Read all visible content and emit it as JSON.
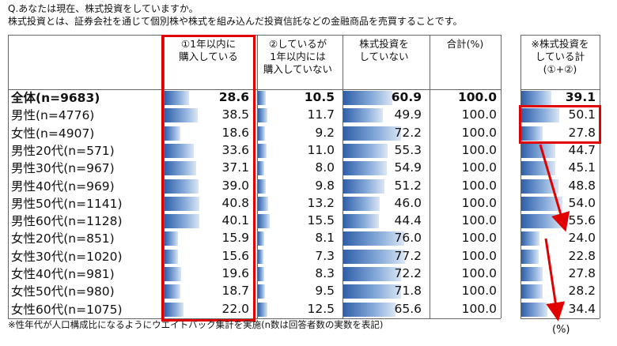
{
  "question": "Q.あなたは現在、株式投資をしていますか。",
  "description": "株式投資とは、証券会社を通じて個別株や株式を組み込んだ投資信託などの金融商品を売買することです。",
  "note": "※性年代が人口構成比になるようにウエイトバック集計を実施(n数は回答者数の実数を表記)",
  "unit": "(%)",
  "colors": {
    "highlight": "#e00000",
    "bar_start": "#2f5fa9",
    "bar_end": "#dbe6f4"
  },
  "chart_data": {
    "type": "table",
    "columns": [
      {
        "key": "c1",
        "label_lines": [
          "①1年以内に",
          "購入している"
        ]
      },
      {
        "key": "c2",
        "label_lines": [
          "②しているが",
          "1年以内には",
          "購入していない"
        ]
      },
      {
        "key": "c3",
        "label_lines": [
          "株式投資を",
          "していない"
        ]
      },
      {
        "key": "c4",
        "label_lines": [
          "合計(%)"
        ]
      },
      {
        "key": "c5",
        "label_lines": [
          "※株式投資を",
          "している計",
          "(①+②)"
        ]
      }
    ],
    "rows": [
      {
        "label": "全体(n=9683)",
        "values": [
          28.6,
          10.5,
          60.9,
          100.0,
          39.1
        ],
        "bold": true
      },
      {
        "label": "男性(n=4776)",
        "values": [
          38.5,
          11.7,
          49.9,
          100.0,
          50.1
        ]
      },
      {
        "label": "女性(n=4907)",
        "values": [
          18.6,
          9.2,
          72.2,
          100.0,
          27.8
        ]
      },
      {
        "label": "男性20代(n=571)",
        "values": [
          33.6,
          11.0,
          55.3,
          100.0,
          44.7
        ]
      },
      {
        "label": "男性30代(n=967)",
        "values": [
          37.1,
          8.0,
          54.9,
          100.0,
          45.1
        ]
      },
      {
        "label": "男性40代(n=969)",
        "values": [
          39.0,
          9.8,
          51.2,
          100.0,
          48.8
        ]
      },
      {
        "label": "男性50代(n=1141)",
        "values": [
          40.8,
          13.2,
          46.0,
          100.0,
          54.0
        ]
      },
      {
        "label": "男性60代(n=1128)",
        "values": [
          40.1,
          15.5,
          44.4,
          100.0,
          55.6
        ]
      },
      {
        "label": "女性20代(n=851)",
        "values": [
          15.9,
          8.1,
          76.0,
          100.0,
          24.0
        ]
      },
      {
        "label": "女性30代(n=1020)",
        "values": [
          15.6,
          7.3,
          77.2,
          100.0,
          22.8
        ]
      },
      {
        "label": "女性40代(n=981)",
        "values": [
          19.6,
          8.3,
          72.2,
          100.0,
          27.8
        ]
      },
      {
        "label": "女性50代(n=980)",
        "values": [
          18.7,
          9.5,
          71.8,
          100.0,
          28.2
        ]
      },
      {
        "label": "女性60代(n=1075)",
        "values": [
          22.0,
          12.5,
          65.6,
          100.0,
          34.4
        ]
      }
    ]
  }
}
